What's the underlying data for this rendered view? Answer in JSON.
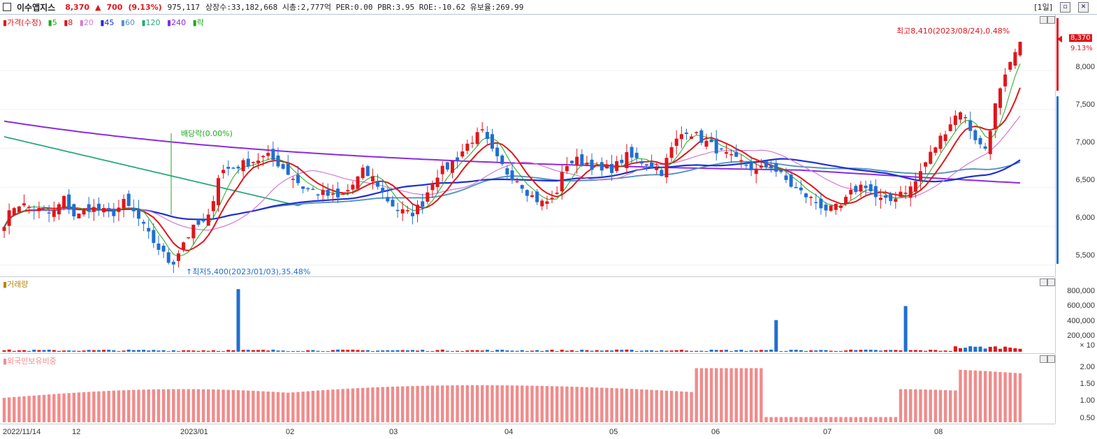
{
  "header": {
    "stock_name": "이수앱지스",
    "price": "8,370",
    "change_arrow": "▲",
    "change": "700",
    "change_pct": "(9.13%)",
    "volume": "975,117",
    "stats": "상장수:33,182,668 시총:2,777억 PER:0.00 PBR:3.95 ROE:-10.62 유보율:269.99",
    "period": "[1일]"
  },
  "price_panel": {
    "legend": {
      "price": "가격(수정)",
      "ma5": "5",
      "ma8": "8",
      "ma20": "20",
      "ma45": "45",
      "ma60": "60",
      "ma120": "120",
      "ma240": "240",
      "rak": "락"
    },
    "high_annotation": "최고8,410(2023/08/24),0.48%",
    "low_annotation": "최저5,400(2023/01/03),35.48%",
    "dividend_annotation": "배당락(0.00%)",
    "current_price_tag": "8,370",
    "current_pct_tag": "9.13%",
    "axis_labels": [
      "8,000",
      "7,500",
      "7,000",
      "6,500",
      "6,000",
      "5,500"
    ]
  },
  "volume_panel": {
    "legend": "거래량",
    "axis_labels": [
      "800,000",
      "600,000",
      "400,000",
      "200,000",
      "× 10"
    ]
  },
  "foreign_panel": {
    "legend": "외국인보유비중",
    "axis_labels": [
      "2.00",
      "1.50",
      "1.00",
      "0.50"
    ]
  },
  "x_labels": [
    "2022/11/14",
    "12",
    "2023/01",
    "02",
    "03",
    "04",
    "05",
    "06",
    "07",
    "08"
  ],
  "colors": {
    "up": "#e0161b",
    "down": "#1f6fd1",
    "ma5": "#1faa1f",
    "ma8": "#e0161b",
    "ma20": "#d27bd2",
    "ma45": "#1f2fd1",
    "ma60": "#5a8fc8",
    "ma120": "#2aa87a",
    "ma240": "#8a2be2",
    "foreign": "#f08c8c"
  },
  "chart_data": {
    "type": "candlestick",
    "x": [
      "2022-11-14",
      "2022-12",
      "2023-01",
      "2023-02",
      "2023-03",
      "2023-04",
      "2023-05",
      "2023-06",
      "2023-07",
      "2023-08"
    ],
    "close_path": [
      6050,
      6300,
      6250,
      6200,
      6150,
      6350,
      6100,
      6250,
      6200,
      6150,
      6300,
      6150,
      5900,
      5700,
      5500,
      5800,
      6000,
      6050,
      6700,
      6750,
      6800,
      6850,
      6900,
      6800,
      6650,
      6500,
      6450,
      6400,
      6350,
      6500,
      6700,
      6600,
      6350,
      6200,
      6150,
      6300,
      6650,
      6750,
      6900,
      7100,
      7200,
      6900,
      6700,
      6600,
      6400,
      6300,
      6350,
      6800,
      6850,
      6800,
      6700,
      6750,
      6900,
      6850,
      6800,
      6700,
      7050,
      7250,
      7150,
      7050,
      6950,
      6850,
      6800,
      6700,
      6800,
      6650,
      6500,
      6400,
      6300,
      6200,
      6250,
      6450,
      6550,
      6350,
      6300,
      6450,
      6500,
      6800,
      7050,
      7300,
      7500,
      7200,
      6950,
      7600,
      8000,
      8370
    ],
    "series": [
      {
        "name": "가격(수정)",
        "type": "candle",
        "high": 8410,
        "high_date": "2023/08/24",
        "low": 5400,
        "low_date": "2023/01/03",
        "last_close": 8370
      }
    ],
    "ylim_price": [
      5400,
      8450
    ],
    "volume_peaks": [
      {
        "date": "2023-01 (mid)",
        "value": 850000
      },
      {
        "date": "2023-06",
        "value": 430000
      },
      {
        "date": "2023-07",
        "value": 620000
      }
    ],
    "volume_ylim": [
      0,
      900000
    ],
    "foreign_ratio_range": [
      0.4,
      2.05
    ],
    "foreign_ylim": [
      0.3,
      2.2
    ]
  }
}
